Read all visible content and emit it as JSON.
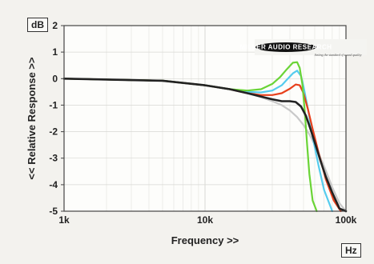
{
  "chart_data": {
    "type": "line",
    "title": "",
    "xlabel": "Frequency >>",
    "ylabel": "<< Relative Response >>",
    "x_unit_label": "Hz",
    "y_unit_label": "dB",
    "x_scale": "log",
    "xlim": [
      1000,
      100000
    ],
    "ylim": [
      -5,
      2
    ],
    "x_ticks": [
      {
        "value": 1000,
        "label": "1k"
      },
      {
        "value": 10000,
        "label": "10k"
      },
      {
        "value": 100000,
        "label": "100k"
      }
    ],
    "y_ticks": [
      {
        "value": 2,
        "label": "2"
      },
      {
        "value": 1,
        "label": "1"
      },
      {
        "value": 0,
        "label": "0"
      },
      {
        "value": -1,
        "label": "-1"
      },
      {
        "value": -2,
        "label": "-2"
      },
      {
        "value": -3,
        "label": "-3"
      },
      {
        "value": -4,
        "label": "-4"
      },
      {
        "value": -5,
        "label": "-5"
      }
    ],
    "grid": true,
    "logo": {
      "name": "MILLER AUDIO RESEARCH",
      "tagline": "Setting the standard of sound quality"
    },
    "series": [
      {
        "color": "#c9c9c9",
        "x": [
          1000,
          5000,
          10000,
          15000,
          20000,
          25000,
          30000,
          35000,
          40000,
          45000,
          50000,
          55000,
          60000,
          70000,
          80000,
          90000,
          100000
        ],
        "y": [
          0,
          -0.08,
          -0.25,
          -0.4,
          -0.55,
          -0.7,
          -0.85,
          -1.0,
          -1.2,
          -1.45,
          -1.75,
          -2.1,
          -2.5,
          -3.3,
          -4.1,
          -4.7,
          -5
        ]
      },
      {
        "color": "#55ccee",
        "x": [
          1000,
          5000,
          10000,
          15000,
          20000,
          25000,
          30000,
          35000,
          38000,
          42000,
          45000,
          48000,
          50000,
          54000,
          58000,
          64000,
          70000,
          80000
        ],
        "y": [
          0,
          -0.08,
          -0.25,
          -0.4,
          -0.5,
          -0.52,
          -0.45,
          -0.25,
          -0.05,
          0.2,
          0.3,
          0.1,
          -0.3,
          -1.2,
          -2.2,
          -3.3,
          -4.2,
          -5
        ]
      },
      {
        "color": "#e8401c",
        "x": [
          1000,
          5000,
          10000,
          15000,
          20000,
          25000,
          30000,
          35000,
          40000,
          44000,
          47000,
          50000,
          54000,
          58000,
          64000,
          72000,
          82000,
          92000
        ],
        "y": [
          0,
          -0.08,
          -0.25,
          -0.4,
          -0.55,
          -0.62,
          -0.62,
          -0.55,
          -0.38,
          -0.22,
          -0.25,
          -0.55,
          -1.2,
          -1.9,
          -2.8,
          -3.8,
          -4.6,
          -5
        ]
      },
      {
        "color": "#6ad436",
        "x": [
          1000,
          5000,
          10000,
          15000,
          20000,
          25000,
          30000,
          34000,
          38000,
          42000,
          45000,
          47000,
          49000,
          51000,
          53000,
          55000,
          58000,
          62000
        ],
        "y": [
          0,
          -0.08,
          -0.25,
          -0.4,
          -0.45,
          -0.4,
          -0.2,
          0.05,
          0.35,
          0.6,
          0.62,
          0.4,
          -0.2,
          -1.2,
          -2.5,
          -3.6,
          -4.6,
          -5
        ]
      },
      {
        "color": "#222222",
        "x": [
          1000,
          5000,
          10000,
          15000,
          20000,
          25000,
          30000,
          35000,
          40000,
          44000,
          48000,
          52000,
          56000,
          60000,
          66000,
          72000,
          80000,
          90000,
          100000
        ],
        "y": [
          0,
          -0.08,
          -0.25,
          -0.4,
          -0.55,
          -0.68,
          -0.78,
          -0.85,
          -0.85,
          -0.88,
          -1.05,
          -1.4,
          -1.9,
          -2.4,
          -3.1,
          -3.7,
          -4.3,
          -4.9,
          -5
        ]
      }
    ]
  }
}
